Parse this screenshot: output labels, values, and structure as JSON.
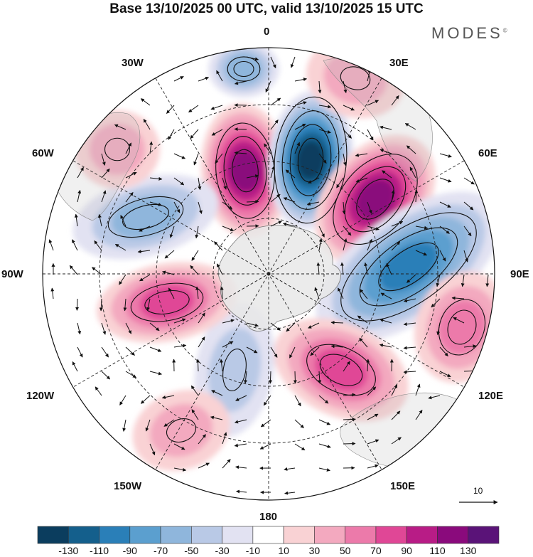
{
  "title": "Base 13/10/2025 00 UTC, valid 13/10/2025 15 UTC",
  "brand": "MODES",
  "brand_mark": "©",
  "longitude_labels": {
    "top": "0",
    "top_right": "30E",
    "top_left": "30W",
    "upper_left": "60W",
    "upper_right": "60E",
    "left": "90W",
    "right": "90E",
    "lower_left": "120W",
    "lower_right": "120E",
    "bottom_left": "150W",
    "bottom_right": "150E",
    "bottom": "180"
  },
  "reference_vector": "10",
  "colorbar": {
    "labels": [
      "-130",
      "-110",
      "-90",
      "-70",
      "-50",
      "-30",
      "-10",
      "10",
      "30",
      "50",
      "70",
      "90",
      "110",
      "130"
    ],
    "colors": [
      "#0b3d5e",
      "#145f8c",
      "#2a7fb8",
      "#5b9fcf",
      "#8fb6dc",
      "#b9c9e6",
      "#e2e2f2",
      "#ffffff",
      "#f9d2d4",
      "#f3a9bf",
      "#ec7aaa",
      "#e04796",
      "#b81c86",
      "#8a0a7c",
      "#5a1378"
    ]
  },
  "anomaly_centres": [
    {
      "sign": "negative",
      "level": 3,
      "at": "north-top"
    },
    {
      "sign": "positive",
      "level": 6,
      "at": "upper-left-of-pole"
    },
    {
      "sign": "negative",
      "level": 7,
      "at": "upper-centre"
    },
    {
      "sign": "positive",
      "level": 6,
      "at": "upper-right"
    },
    {
      "sign": "negative",
      "level": 5,
      "at": "right"
    },
    {
      "sign": "positive",
      "level": 3,
      "at": "far-right"
    },
    {
      "sign": "positive",
      "level": 4,
      "at": "lower-right"
    },
    {
      "sign": "negative",
      "level": 2,
      "at": "lower-centre"
    },
    {
      "sign": "positive",
      "level": 2,
      "at": "lower-left"
    },
    {
      "sign": "positive",
      "level": 4,
      "at": "left"
    },
    {
      "sign": "negative",
      "level": 3,
      "at": "upper-far-left"
    },
    {
      "sign": "positive",
      "level": 2,
      "at": "top-left"
    },
    {
      "sign": "positive",
      "level": 2,
      "at": "top-right"
    }
  ]
}
